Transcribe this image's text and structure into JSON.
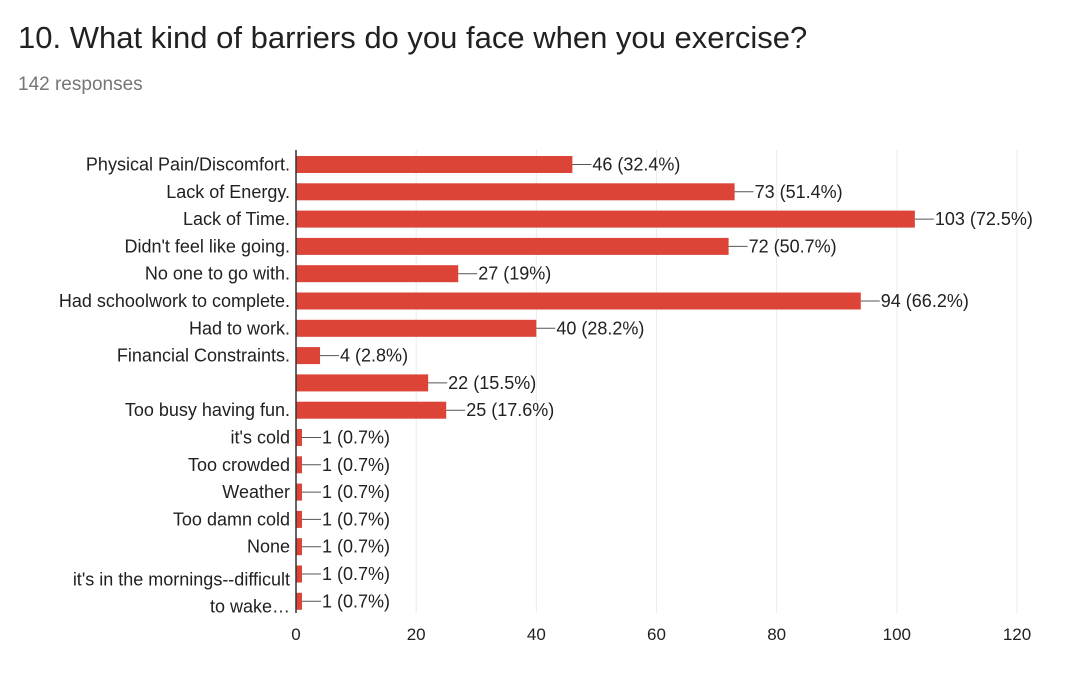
{
  "question": {
    "title": "10. What kind of barriers do you face when you exercise?",
    "responses": "142 responses"
  },
  "colors": {
    "bar": "#db4437",
    "grid": "#ebebeb",
    "axis": "#333333",
    "text": "#212121",
    "muted": "#757575"
  },
  "chart_data": {
    "type": "bar",
    "orientation": "horizontal",
    "title": "",
    "xlabel": "",
    "ylabel": "",
    "xlim": [
      0,
      120
    ],
    "xticks": [
      0,
      20,
      40,
      60,
      80,
      100,
      120
    ],
    "grid": true,
    "legend": "none",
    "categories": [
      "Physical Pain/Discomfort.",
      "Lack of Energy.",
      "Lack of Time.",
      "Didn't feel like going.",
      "No one to go with.",
      "Had schoolwork to complete.",
      "Had to work.",
      "Financial Constraints.",
      "",
      "Too busy having fun.",
      "it's cold",
      "Too crowded",
      "Weather",
      "Too damn cold",
      "None",
      "",
      ""
    ],
    "multiline_category": {
      "rows": [
        15,
        16
      ],
      "lines": [
        "it's in the mornings--difficult",
        "to wake…"
      ]
    },
    "values": [
      46,
      73,
      103,
      72,
      27,
      94,
      40,
      4,
      22,
      25,
      1,
      1,
      1,
      1,
      1,
      1,
      1
    ],
    "data_labels": [
      "46 (32.4%)",
      "73 (51.4%)",
      "103 (72.5%)",
      "72 (50.7%)",
      "27 (19%)",
      "94 (66.2%)",
      "40 (28.2%)",
      "4 (2.8%)",
      "22 (15.5%)",
      "25 (17.6%)",
      "1 (0.7%)",
      "1 (0.7%)",
      "1 (0.7%)",
      "1 (0.7%)",
      "1 (0.7%)",
      "1 (0.7%)",
      "1 (0.7%)"
    ]
  }
}
